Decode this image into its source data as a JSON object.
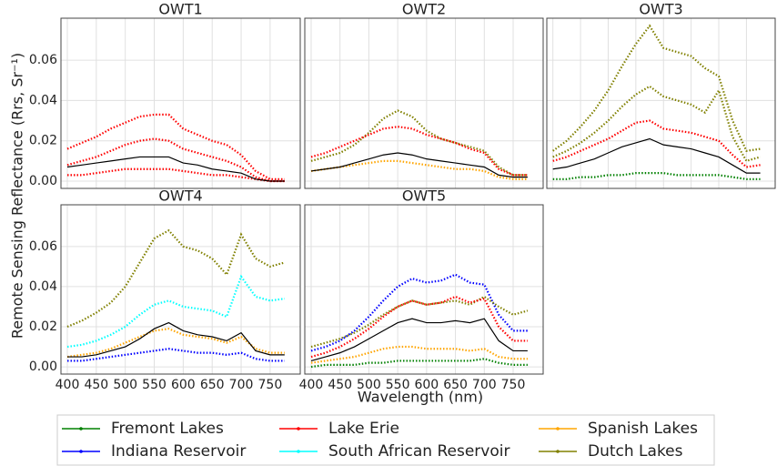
{
  "chart_data": {
    "type": "small-multiples",
    "ylabel": "Remote Sensing Reflectance (Rrs, Sr⁻¹)",
    "xlabel": "Wavelength (nm)",
    "grid": true,
    "x": [
      400,
      425,
      450,
      475,
      500,
      525,
      550,
      575,
      600,
      625,
      650,
      675,
      700,
      725,
      750,
      775
    ],
    "xlim": [
      389,
      802
    ],
    "xticks": [
      400,
      450,
      500,
      550,
      600,
      650,
      700,
      750
    ],
    "ylim": [
      -0.0036,
      0.0808
    ],
    "yticks": [
      {
        "value": 0,
        "label": "0.00"
      },
      0.02,
      0.04,
      0.06
    ],
    "legend": [
      {
        "name": "Fremont Lakes",
        "color": "#008000"
      },
      {
        "name": "Indiana Reservoir",
        "color": "#0000ff"
      },
      {
        "name": "Lake Erie",
        "color": "#ff0000"
      },
      {
        "name": "South African Reservoir",
        "color": "#00ffff"
      },
      {
        "name": "Spanish Lakes",
        "color": "#ffa500"
      },
      {
        "name": "Dutch Lakes",
        "color": "#808000"
      }
    ],
    "panels": [
      {
        "title": "OWT1",
        "series": [
          {
            "color": "#ff0000",
            "values": [
              0.016,
              0.019,
              0.022,
              0.026,
              0.029,
              0.032,
              0.033,
              0.033,
              0.026,
              0.023,
              0.02,
              0.018,
              0.013,
              0.005,
              0.001,
              0.001
            ]
          },
          {
            "color": "#ff0000",
            "values": [
              0.008,
              0.01,
              0.012,
              0.015,
              0.018,
              0.02,
              0.021,
              0.02,
              0.016,
              0.014,
              0.012,
              0.01,
              0.007,
              0.002,
              0.0,
              0.0
            ]
          },
          {
            "color": "#ff0000",
            "values": [
              0.003,
              0.003,
              0.004,
              0.005,
              0.006,
              0.006,
              0.006,
              0.006,
              0.005,
              0.004,
              0.003,
              0.003,
              0.002,
              0.001,
              0.0,
              0.0
            ]
          },
          {
            "color": "#000000",
            "values": [
              0.007,
              0.008,
              0.009,
              0.01,
              0.011,
              0.012,
              0.012,
              0.012,
              0.009,
              0.008,
              0.006,
              0.005,
              0.004,
              0.001,
              0.0,
              0.0
            ]
          }
        ]
      },
      {
        "title": "OWT2",
        "series": [
          {
            "color": "#808000",
            "values": [
              0.01,
              0.012,
              0.014,
              0.018,
              0.024,
              0.031,
              0.035,
              0.032,
              0.025,
              0.021,
              0.019,
              0.017,
              0.015,
              0.007,
              0.003,
              0.003
            ]
          },
          {
            "color": "#ff0000",
            "values": [
              0.012,
              0.014,
              0.017,
              0.02,
              0.023,
              0.026,
              0.027,
              0.026,
              0.023,
              0.021,
              0.019,
              0.016,
              0.014,
              0.006,
              0.003,
              0.003
            ]
          },
          {
            "color": "#ffa500",
            "values": [
              0.005,
              0.006,
              0.007,
              0.008,
              0.009,
              0.01,
              0.01,
              0.009,
              0.008,
              0.007,
              0.006,
              0.006,
              0.005,
              0.002,
              0.001,
              0.001
            ]
          },
          {
            "color": "#000000",
            "values": [
              0.005,
              0.006,
              0.007,
              0.009,
              0.011,
              0.013,
              0.014,
              0.013,
              0.011,
              0.01,
              0.009,
              0.008,
              0.007,
              0.003,
              0.002,
              0.002
            ]
          }
        ]
      },
      {
        "title": "OWT3",
        "series": [
          {
            "color": "#808000",
            "values": [
              0.015,
              0.02,
              0.027,
              0.035,
              0.045,
              0.057,
              0.068,
              0.077,
              0.066,
              0.064,
              0.062,
              0.056,
              0.052,
              0.03,
              0.015,
              0.016
            ]
          },
          {
            "color": "#808000",
            "values": [
              0.012,
              0.015,
              0.019,
              0.024,
              0.03,
              0.037,
              0.043,
              0.047,
              0.042,
              0.04,
              0.038,
              0.034,
              0.045,
              0.022,
              0.01,
              0.012
            ]
          },
          {
            "color": "#ff0000",
            "values": [
              0.01,
              0.012,
              0.015,
              0.018,
              0.021,
              0.025,
              0.029,
              0.03,
              0.026,
              0.025,
              0.024,
              0.022,
              0.02,
              0.013,
              0.007,
              0.008
            ]
          },
          {
            "color": "#008000",
            "values": [
              0.001,
              0.001,
              0.002,
              0.002,
              0.003,
              0.003,
              0.004,
              0.004,
              0.004,
              0.003,
              0.003,
              0.003,
              0.003,
              0.002,
              0.001,
              0.001
            ]
          },
          {
            "color": "#000000",
            "values": [
              0.006,
              0.007,
              0.009,
              0.011,
              0.014,
              0.017,
              0.019,
              0.021,
              0.018,
              0.017,
              0.016,
              0.014,
              0.012,
              0.008,
              0.004,
              0.004
            ]
          }
        ]
      },
      {
        "title": "OWT4",
        "series": [
          {
            "color": "#808000",
            "values": [
              0.02,
              0.023,
              0.027,
              0.032,
              0.04,
              0.052,
              0.064,
              0.068,
              0.06,
              0.058,
              0.054,
              0.046,
              0.066,
              0.054,
              0.05,
              0.052
            ]
          },
          {
            "color": "#00ffff",
            "values": [
              0.01,
              0.011,
              0.013,
              0.016,
              0.02,
              0.026,
              0.031,
              0.033,
              0.03,
              0.029,
              0.028,
              0.025,
              0.045,
              0.035,
              0.033,
              0.034
            ]
          },
          {
            "color": "#ffa500",
            "values": [
              0.005,
              0.006,
              0.007,
              0.009,
              0.012,
              0.015,
              0.018,
              0.019,
              0.016,
              0.015,
              0.014,
              0.012,
              0.015,
              0.009,
              0.007,
              0.007
            ]
          },
          {
            "color": "#0000ff",
            "values": [
              0.003,
              0.003,
              0.004,
              0.005,
              0.006,
              0.007,
              0.008,
              0.009,
              0.008,
              0.007,
              0.007,
              0.006,
              0.007,
              0.004,
              0.003,
              0.003
            ]
          },
          {
            "color": "#000000",
            "values": [
              0.005,
              0.005,
              0.006,
              0.008,
              0.01,
              0.014,
              0.019,
              0.022,
              0.018,
              0.016,
              0.015,
              0.013,
              0.017,
              0.008,
              0.006,
              0.006
            ]
          }
        ]
      },
      {
        "title": "OWT5",
        "series": [
          {
            "color": "#0000ff",
            "values": [
              0.008,
              0.01,
              0.013,
              0.018,
              0.025,
              0.033,
              0.04,
              0.044,
              0.042,
              0.043,
              0.046,
              0.042,
              0.041,
              0.026,
              0.018,
              0.018
            ]
          },
          {
            "color": "#808000",
            "values": [
              0.01,
              0.012,
              0.014,
              0.017,
              0.021,
              0.026,
              0.03,
              0.033,
              0.031,
              0.032,
              0.033,
              0.031,
              0.035,
              0.03,
              0.026,
              0.028
            ]
          },
          {
            "color": "#ff0000",
            "values": [
              0.005,
              0.007,
              0.01,
              0.014,
              0.019,
              0.025,
              0.03,
              0.033,
              0.031,
              0.032,
              0.035,
              0.032,
              0.034,
              0.02,
              0.013,
              0.013
            ]
          },
          {
            "color": "#ffa500",
            "values": [
              0.002,
              0.003,
              0.004,
              0.005,
              0.007,
              0.009,
              0.01,
              0.01,
              0.009,
              0.009,
              0.009,
              0.008,
              0.009,
              0.005,
              0.004,
              0.004
            ]
          },
          {
            "color": "#008000",
            "values": [
              0.0,
              0.001,
              0.001,
              0.001,
              0.002,
              0.002,
              0.003,
              0.003,
              0.003,
              0.003,
              0.003,
              0.003,
              0.004,
              0.002,
              0.001,
              0.001
            ]
          },
          {
            "color": "#000000",
            "values": [
              0.003,
              0.005,
              0.007,
              0.01,
              0.014,
              0.018,
              0.022,
              0.024,
              0.022,
              0.022,
              0.023,
              0.022,
              0.024,
              0.013,
              0.008,
              0.008
            ]
          }
        ]
      }
    ]
  }
}
